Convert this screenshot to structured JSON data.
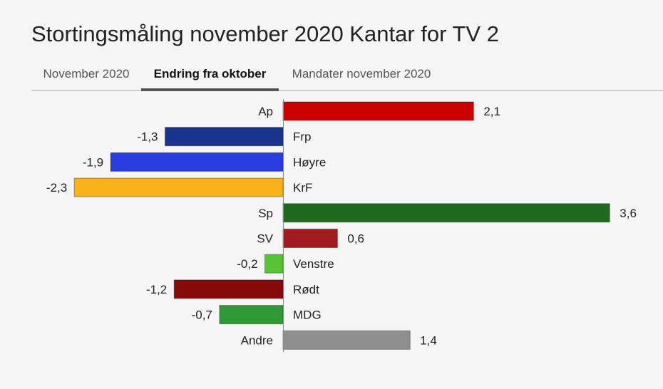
{
  "title": "Stortingsmåling november 2020 Kantar for TV 2",
  "tabs": [
    {
      "label": "November 2020",
      "active": false
    },
    {
      "label": "Endring fra oktober",
      "active": true
    },
    {
      "label": "Mandater november 2020",
      "active": false
    }
  ],
  "chart_data": {
    "type": "bar",
    "orientation": "horizontal",
    "title": "",
    "xlabel": "",
    "ylabel": "",
    "xlim": [
      -2.3,
      3.6
    ],
    "grid": false,
    "value_format": "comma-decimal",
    "categories": [
      "Ap",
      "Frp",
      "Høyre",
      "KrF",
      "Sp",
      "SV",
      "Venstre",
      "Rødt",
      "MDG",
      "Andre"
    ],
    "values": [
      2.1,
      -1.3,
      -1.9,
      -2.3,
      3.6,
      0.6,
      -0.2,
      -1.2,
      -0.7,
      1.4
    ],
    "value_labels": [
      "2,1",
      "-1,3",
      "-1,9",
      "-2,3",
      "3,6",
      "0,6",
      "-0,2",
      "-1,2",
      "-0,7",
      "1,4"
    ],
    "colors": [
      "#cc0000",
      "#18348f",
      "#2a3de0",
      "#f9b21c",
      "#206a1f",
      "#a01b20",
      "#56c433",
      "#860a0a",
      "#2f9a35",
      "#8f8f8f"
    ]
  }
}
